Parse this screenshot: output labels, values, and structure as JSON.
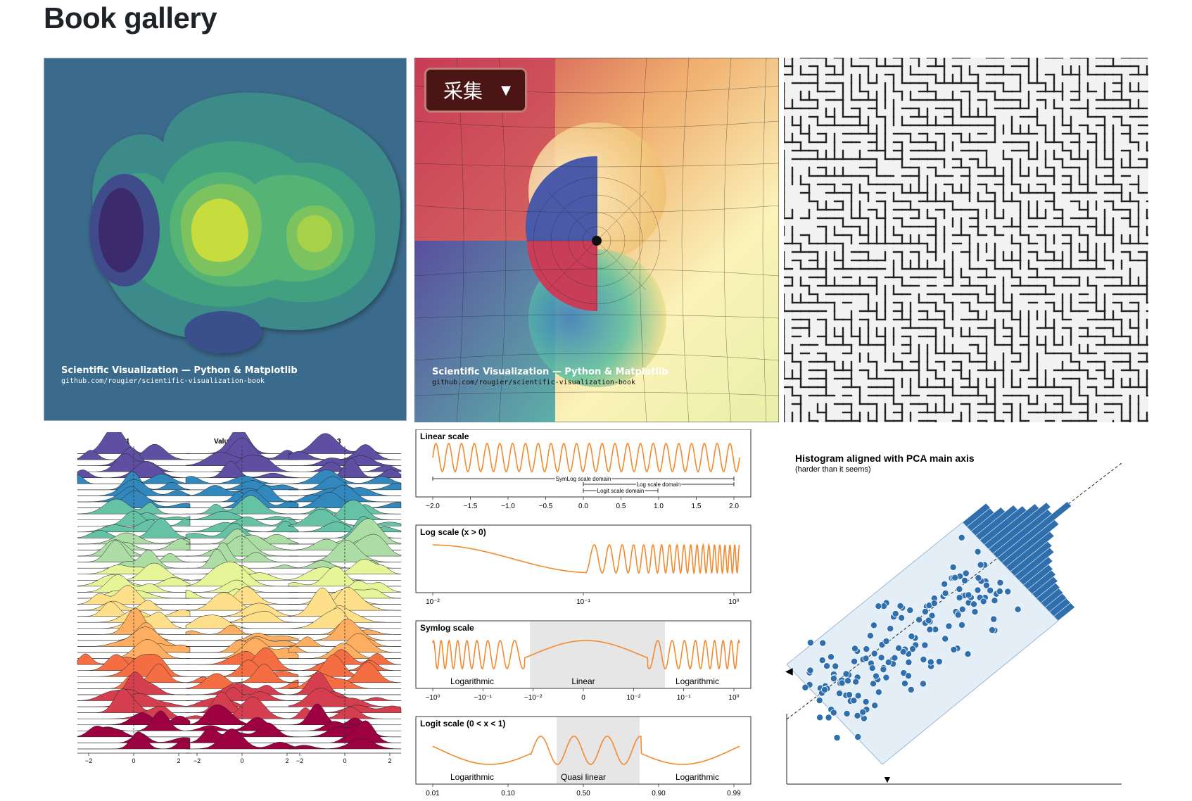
{
  "page": {
    "heading": "Book gallery"
  },
  "collect_button": {
    "label": "采集",
    "icon": "caret-down-icon"
  },
  "tiles": {
    "contour": {
      "watermark_title": "Scientific Visualization — Python & Matplotlib",
      "watermark_url": "github.com/rougier/scientific-visualization-book"
    },
    "complex": {
      "watermark_title": "Scientific Visualization — Python & Matplotlib",
      "watermark_url": "github.com/rougier/scientific-visualization-book"
    },
    "ridgeline": {
      "panel_titles": [
        "Value 1",
        "Value 2",
        "Value 3"
      ],
      "x_ticks": [
        "−2",
        "0",
        "2"
      ]
    },
    "scales": {
      "panels": [
        {
          "title": "Linear scale",
          "ticks": [
            "−2.0",
            "−1.5",
            "−1.0",
            "−0.5",
            "0.0",
            "0.5",
            "1.0",
            "1.5",
            "2.0"
          ],
          "domains": [
            "SymLog scale domain",
            "Log scale domain",
            "Logit scale domain"
          ]
        },
        {
          "title": "Log scale (x > 0)",
          "ticks": [
            "10⁻²",
            "10⁻¹",
            "10⁰"
          ]
        },
        {
          "title": "Symlog scale",
          "ticks": [
            "−10⁰",
            "−10⁻¹",
            "−10⁻²",
            "0",
            "10⁻²",
            "10⁻¹",
            "10⁰"
          ],
          "regions": [
            "Logarithmic",
            "Linear",
            "Logarithmic"
          ]
        },
        {
          "title": "Logit scale (0 < x < 1)",
          "ticks": [
            "0.01",
            "0.10",
            "0.50",
            "0.90",
            "0.99"
          ],
          "regions": [
            "Logarithmic",
            "Quasi linear",
            "Logarithmic"
          ]
        }
      ]
    },
    "pca": {
      "title": "Histogram aligned with PCA main axis",
      "subtitle": "(harder than it seems)"
    }
  },
  "colors": {
    "contour_bg": "#3b6b8c",
    "orange": "#f28a2e",
    "pca_blue": "#2f6fad",
    "pca_band": "#e3eef7"
  }
}
